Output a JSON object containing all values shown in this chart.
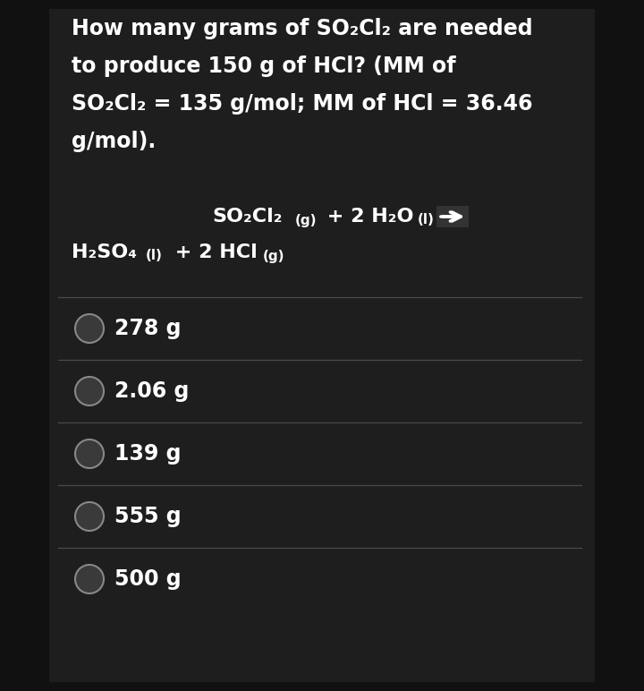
{
  "bg_color": "#111111",
  "panel_color": "#1e1e1e",
  "text_color": "#ffffff",
  "separator_color": "#4a4a4a",
  "circle_fill": "#3a3a3a",
  "circle_edge": "#888888",
  "question_lines": [
    "How many grams of SO₂Cl₂ are needed",
    "to produce 150 g of HCl? (MM of",
    "SO₂Cl₂ = 135 g/mol; MM of HCl = 36.46",
    "g/mol)."
  ],
  "choices": [
    "278 g",
    "2.06 g",
    "139 g",
    "555 g",
    "500 g"
  ],
  "q_fontsize": 17,
  "choice_fontsize": 17,
  "eq_fontsize": 16,
  "eq_sub_fontsize": 11
}
